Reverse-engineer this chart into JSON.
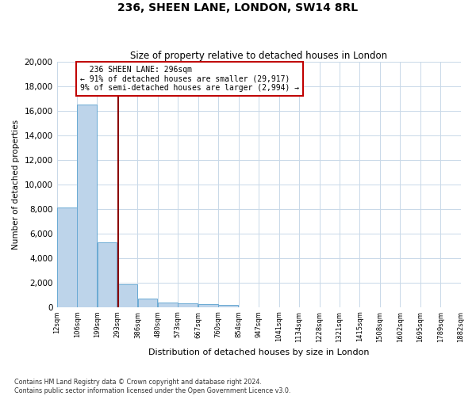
{
  "title1": "236, SHEEN LANE, LONDON, SW14 8RL",
  "title2": "Size of property relative to detached houses in London",
  "xlabel": "Distribution of detached houses by size in London",
  "ylabel": "Number of detached properties",
  "property_size": 296,
  "property_label": "236 SHEEN LANE: 296sqm",
  "pct_smaller": 91,
  "count_smaller": 29917,
  "pct_larger": 9,
  "count_larger": 2994,
  "footnote1": "Contains HM Land Registry data © Crown copyright and database right 2024.",
  "footnote2": "Contains public sector information licensed under the Open Government Licence v3.0.",
  "bar_left_edges": [
    12,
    106,
    199,
    293,
    386,
    480,
    573,
    667,
    760,
    854,
    947,
    1041,
    1134,
    1228,
    1321,
    1415,
    1508,
    1602,
    1695,
    1789
  ],
  "bar_heights": [
    8100,
    16500,
    5300,
    1850,
    700,
    380,
    290,
    220,
    190,
    0,
    0,
    0,
    0,
    0,
    0,
    0,
    0,
    0,
    0,
    0
  ],
  "bin_width": 93,
  "tick_labels": [
    "12sqm",
    "106sqm",
    "199sqm",
    "293sqm",
    "386sqm",
    "480sqm",
    "573sqm",
    "667sqm",
    "760sqm",
    "854sqm",
    "947sqm",
    "1041sqm",
    "1134sqm",
    "1228sqm",
    "1321sqm",
    "1415sqm",
    "1508sqm",
    "1602sqm",
    "1695sqm",
    "1789sqm",
    "1882sqm"
  ],
  "bar_color": "#bdd4ea",
  "bar_edge_color": "#6aaad4",
  "line_color": "#8b0000",
  "annotation_box_color": "#c00000",
  "background_color": "#ffffff",
  "grid_color": "#c8d8e8",
  "ylim": [
    0,
    20000
  ],
  "yticks": [
    0,
    2000,
    4000,
    6000,
    8000,
    10000,
    12000,
    14000,
    16000,
    18000,
    20000
  ]
}
